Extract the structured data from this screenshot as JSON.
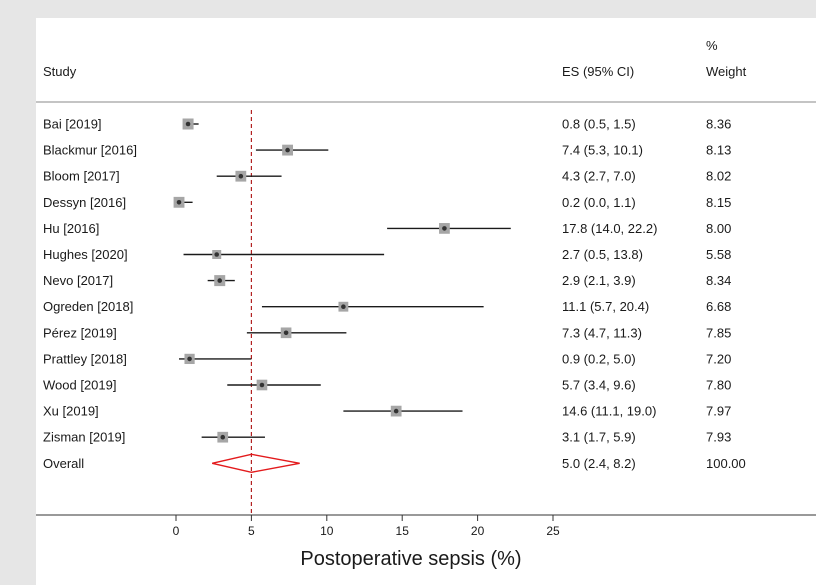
{
  "chart_data": {
    "type": "forest",
    "xlabel": "Postoperative sepsis (%)",
    "xlim": [
      0,
      25
    ],
    "x_ticks": [
      0,
      5,
      10,
      15,
      20,
      25
    ],
    "reference_line": 5.0,
    "headers": {
      "study": "Study",
      "es": "ES (95% CI)",
      "weight_line1": "%",
      "weight_line2": "Weight"
    },
    "studies": [
      {
        "name": "Bai [2019]",
        "es": 0.8,
        "lower": 0.5,
        "upper": 1.5,
        "es_text": "0.8 (0.5, 1.5)",
        "weight": 8.36,
        "weight_text": "8.36"
      },
      {
        "name": "Blackmur [2016]",
        "es": 7.4,
        "lower": 5.3,
        "upper": 10.1,
        "es_text": "7.4 (5.3, 10.1)",
        "weight": 8.13,
        "weight_text": "8.13"
      },
      {
        "name": "Bloom [2017]",
        "es": 4.3,
        "lower": 2.7,
        "upper": 7.0,
        "es_text": "4.3 (2.7, 7.0)",
        "weight": 8.02,
        "weight_text": "8.02"
      },
      {
        "name": "Dessyn [2016]",
        "es": 0.2,
        "lower": 0.0,
        "upper": 1.1,
        "es_text": "0.2 (0.0, 1.1)",
        "weight": 8.15,
        "weight_text": "8.15"
      },
      {
        "name": "Hu [2016]",
        "es": 17.8,
        "lower": 14.0,
        "upper": 22.2,
        "es_text": "17.8 (14.0, 22.2)",
        "weight": 8.0,
        "weight_text": "8.00"
      },
      {
        "name": "Hughes [2020]",
        "es": 2.7,
        "lower": 0.5,
        "upper": 13.8,
        "es_text": "2.7 (0.5, 13.8)",
        "weight": 5.58,
        "weight_text": "5.58"
      },
      {
        "name": "Nevo [2017]",
        "es": 2.9,
        "lower": 2.1,
        "upper": 3.9,
        "es_text": "2.9 (2.1, 3.9)",
        "weight": 8.34,
        "weight_text": "8.34"
      },
      {
        "name": "Ogreden [2018]",
        "es": 11.1,
        "lower": 5.7,
        "upper": 20.4,
        "es_text": "11.1 (5.7, 20.4)",
        "weight": 6.68,
        "weight_text": "6.68"
      },
      {
        "name": "Pérez [2019]",
        "es": 7.3,
        "lower": 4.7,
        "upper": 11.3,
        "es_text": "7.3 (4.7, 11.3)",
        "weight": 7.85,
        "weight_text": "7.85"
      },
      {
        "name": "Prattley [2018]",
        "es": 0.9,
        "lower": 0.2,
        "upper": 5.0,
        "es_text": "0.9 (0.2, 5.0)",
        "weight": 7.2,
        "weight_text": "7.20"
      },
      {
        "name": "Wood [2019]",
        "es": 5.7,
        "lower": 3.4,
        "upper": 9.6,
        "es_text": "5.7 (3.4, 9.6)",
        "weight": 7.8,
        "weight_text": "7.80"
      },
      {
        "name": "Xu [2019]",
        "es": 14.6,
        "lower": 11.1,
        "upper": 19.0,
        "es_text": "14.6 (11.1, 19.0)",
        "weight": 7.97,
        "weight_text": "7.97"
      },
      {
        "name": "Zisman [2019]",
        "es": 3.1,
        "lower": 1.7,
        "upper": 5.9,
        "es_text": "3.1 (1.7, 5.9)",
        "weight": 7.93,
        "weight_text": "7.93"
      }
    ],
    "overall": {
      "name": "Overall",
      "es": 5.0,
      "lower": 2.4,
      "upper": 8.2,
      "es_text": "5.0 (2.4, 8.2)",
      "weight_text": "100.00"
    },
    "colors": {
      "background": "#e6e6e6",
      "panel": "#ffffff",
      "ci_line": "#1a1a1a",
      "weight_box": "#a6a6a6",
      "point": "#333333",
      "reference_line": "#b22222",
      "overall_diamond": "#e31a1c"
    }
  }
}
